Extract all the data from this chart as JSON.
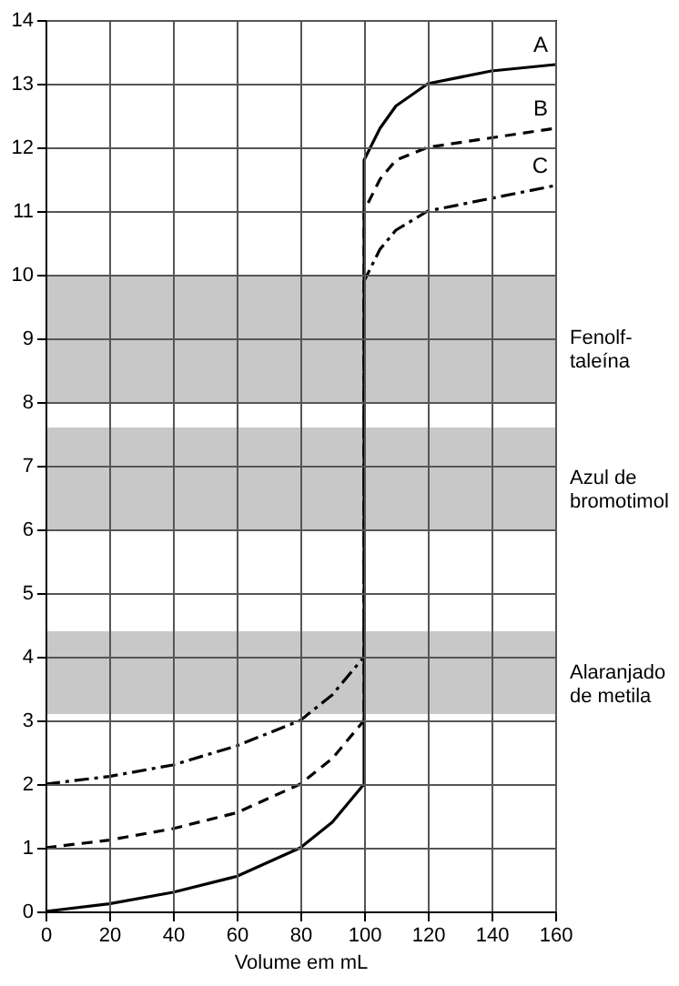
{
  "chart_data": {
    "type": "line",
    "xlabel": "Volume em mL",
    "x": [
      0,
      20,
      40,
      60,
      80,
      90,
      100,
      100,
      105,
      110,
      120,
      140,
      160
    ],
    "series": [
      {
        "name": "A",
        "color": "#000000",
        "line_style": "solid",
        "values": [
          0,
          0.12,
          0.3,
          0.55,
          1.0,
          1.4,
          2.0,
          11.8,
          12.3,
          12.65,
          13.0,
          13.2,
          13.3
        ]
      },
      {
        "name": "B",
        "color": "#000000",
        "line_style": "dashed",
        "values": [
          1.0,
          1.12,
          1.3,
          1.55,
          2.0,
          2.4,
          3.0,
          11.0,
          11.5,
          11.8,
          12.0,
          12.15,
          12.3
        ]
      },
      {
        "name": "C",
        "color": "#000000",
        "line_style": "dashdot",
        "values": [
          2.0,
          2.12,
          2.3,
          2.6,
          3.0,
          3.4,
          4.0,
          9.9,
          10.4,
          10.7,
          11.0,
          11.2,
          11.4
        ]
      }
    ],
    "bands": [
      {
        "axis": "y",
        "from": 8,
        "to": 10,
        "label": "Fenolf-\ntaleína",
        "color": "#c8c8c8"
      },
      {
        "axis": "y",
        "from": 6,
        "to": 7.6,
        "label": "Azul de\nbromotimol",
        "color": "#c8c8c8"
      },
      {
        "axis": "y",
        "from": 3.1,
        "to": 4.4,
        "label": "Alaranjado\nde metila",
        "color": "#c8c8c8"
      }
    ],
    "xlim": [
      0,
      160
    ],
    "xticks": [
      0,
      20,
      40,
      60,
      80,
      100,
      120,
      140,
      160
    ],
    "ylim": [
      0,
      14
    ],
    "yticks": [
      0,
      1,
      2,
      3,
      4,
      5,
      6,
      7,
      8,
      9,
      10,
      11,
      12,
      13,
      14
    ],
    "grid": true
  }
}
